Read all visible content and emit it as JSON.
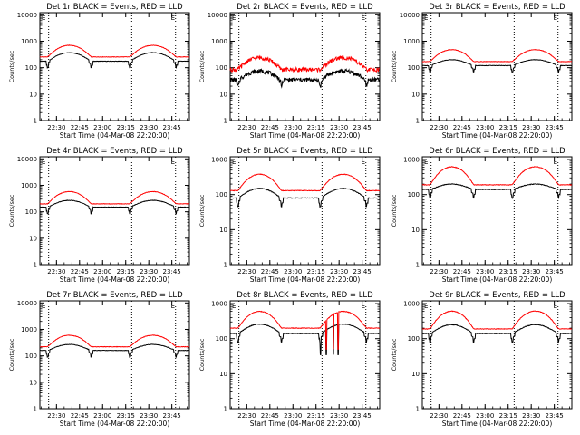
{
  "chart_data": [
    {
      "type": "line",
      "title": "Det 1r BLACK = Events, RED = LLD",
      "xlabel": "Start Time (04-Mar-08 22:20:00)",
      "ylabel": "Counts/sec",
      "yscale": "log",
      "ylim": [
        1,
        12000
      ],
      "xlim": [
        22.32,
        23.94
      ],
      "x_ticks": [
        "22:30",
        "22:45",
        "23:00",
        "23:15",
        "23:30",
        "23:45"
      ],
      "y_ticks": [
        "1",
        "10",
        "100",
        "1000",
        "10000"
      ],
      "marker_label": "E",
      "series": [
        {
          "color": "#000000",
          "kind": "events",
          "base": 175,
          "peak": 370,
          "noise": 0.02
        },
        {
          "color": "#ff0000",
          "kind": "lld",
          "base": 255,
          "peak": 700,
          "noise": 0.02
        }
      ]
    },
    {
      "type": "line",
      "title": "Det 2r BLACK = Events, RED = LLD",
      "xlabel": "Start Time (04-Mar-08 22:20:00)",
      "ylabel": "Counts/sec",
      "yscale": "log",
      "ylim": [
        1,
        12000
      ],
      "xlim": [
        22.32,
        23.94
      ],
      "x_ticks": [
        "22:30",
        "22:45",
        "23:00",
        "23:15",
        "23:30",
        "23:45"
      ],
      "y_ticks": [
        "1",
        "10",
        "100",
        "1000",
        "10000"
      ],
      "marker_label": "E",
      "series": [
        {
          "color": "#000000",
          "kind": "events",
          "base": 35,
          "peak": 75,
          "noise": 0.18
        },
        {
          "color": "#ff0000",
          "kind": "lld",
          "base": 85,
          "peak": 240,
          "noise": 0.18
        }
      ]
    },
    {
      "type": "line",
      "title": "Det 3r BLACK = Events, RED = LLD",
      "xlabel": "Start Time (04-Mar-08 22:20:00)",
      "ylabel": "Counts/sec",
      "yscale": "log",
      "ylim": [
        1,
        12000
      ],
      "xlim": [
        22.32,
        23.94
      ],
      "x_ticks": [
        "22:30",
        "22:45",
        "23:00",
        "23:15",
        "23:30",
        "23:45"
      ],
      "y_ticks": [
        "1",
        "10",
        "100",
        "1000",
        "10000"
      ],
      "marker_label": "E",
      "series": [
        {
          "color": "#000000",
          "kind": "events",
          "base": 120,
          "peak": 200,
          "noise": 0.02
        },
        {
          "color": "#ff0000",
          "kind": "lld",
          "base": 170,
          "peak": 480,
          "noise": 0.02
        }
      ]
    },
    {
      "type": "line",
      "title": "Det 4r BLACK = Events, RED = LLD",
      "xlabel": "Start Time (04-Mar-08 22:20:00)",
      "ylabel": "Counts/sec",
      "yscale": "log",
      "ylim": [
        1,
        12000
      ],
      "xlim": [
        22.32,
        23.94
      ],
      "x_ticks": [
        "22:30",
        "22:45",
        "23:00",
        "23:15",
        "23:30",
        "23:45"
      ],
      "y_ticks": [
        "1",
        "10",
        "100",
        "1000",
        "10000"
      ],
      "marker_label": "E",
      "series": [
        {
          "color": "#000000",
          "kind": "events",
          "base": 150,
          "peak": 270,
          "noise": 0.02
        },
        {
          "color": "#ff0000",
          "kind": "lld",
          "base": 200,
          "peak": 580,
          "noise": 0.02
        }
      ]
    },
    {
      "type": "line",
      "title": "Det 5r BLACK = Events, RED = LLD",
      "xlabel": "Start Time (04-Mar-08 22:20:00)",
      "ylabel": "Counts/sec",
      "yscale": "log",
      "ylim": [
        1,
        1200
      ],
      "xlim": [
        22.32,
        23.94
      ],
      "x_ticks": [
        "22:30",
        "22:45",
        "23:00",
        "23:15",
        "23:30",
        "23:45"
      ],
      "y_ticks": [
        "1",
        "10",
        "100",
        "1000"
      ],
      "marker_label": "E",
      "series": [
        {
          "color": "#000000",
          "kind": "events",
          "base": 80,
          "peak": 150,
          "noise": 0.02
        },
        {
          "color": "#ff0000",
          "kind": "lld",
          "base": 130,
          "peak": 380,
          "noise": 0.02
        }
      ]
    },
    {
      "type": "line",
      "title": "Det 6r BLACK = Events, RED = LLD",
      "xlabel": "Start Time (04-Mar-08 22:20:00)",
      "ylabel": "Counts/sec",
      "yscale": "log",
      "ylim": [
        1,
        1200
      ],
      "xlim": [
        22.32,
        23.94
      ],
      "x_ticks": [
        "22:30",
        "22:45",
        "23:00",
        "23:15",
        "23:30",
        "23:45"
      ],
      "y_ticks": [
        "1",
        "10",
        "100",
        "1000"
      ],
      "marker_label": "E",
      "series": [
        {
          "color": "#000000",
          "kind": "events",
          "base": 140,
          "peak": 200,
          "noise": 0.02
        },
        {
          "color": "#ff0000",
          "kind": "lld",
          "base": 190,
          "peak": 620,
          "noise": 0.02
        }
      ]
    },
    {
      "type": "line",
      "title": "Det 7r BLACK = Events, RED = LLD",
      "xlabel": "Start Time (04-Mar-08 22:20:00)",
      "ylabel": "Counts/sec",
      "yscale": "log",
      "ylim": [
        1,
        12000
      ],
      "xlim": [
        22.32,
        23.94
      ],
      "x_ticks": [
        "22:30",
        "22:45",
        "23:00",
        "23:15",
        "23:30",
        "23:45"
      ],
      "y_ticks": [
        "1",
        "10",
        "100",
        "1000",
        "10000"
      ],
      "marker_label": "E",
      "series": [
        {
          "color": "#000000",
          "kind": "events",
          "base": 160,
          "peak": 270,
          "noise": 0.02
        },
        {
          "color": "#ff0000",
          "kind": "lld",
          "base": 220,
          "peak": 600,
          "noise": 0.02
        }
      ]
    },
    {
      "type": "line",
      "title": "Det 8r BLACK = Events, RED = LLD",
      "xlabel": "Start Time (04-Mar-08 22:20:00)",
      "ylabel": "Counts/sec",
      "yscale": "log",
      "ylim": [
        1,
        1200
      ],
      "xlim": [
        22.32,
        23.94
      ],
      "x_ticks": [
        "22:30",
        "22:45",
        "23:00",
        "23:15",
        "23:30",
        "23:45"
      ],
      "y_ticks": [
        "1",
        "10",
        "100",
        "1000"
      ],
      "marker_label": "E",
      "series": [
        {
          "color": "#000000",
          "kind": "events",
          "base": 140,
          "peak": 260,
          "noise": 0.02,
          "spikes": [
            23.3,
            23.36,
            23.44,
            23.49
          ]
        },
        {
          "color": "#ff0000",
          "kind": "lld",
          "base": 200,
          "peak": 600,
          "noise": 0.02,
          "spikes": [
            23.36,
            23.44,
            23.49
          ]
        }
      ]
    },
    {
      "type": "line",
      "title": "Det 9r BLACK = Events, RED = LLD",
      "xlabel": "Start Time (04-Mar-08 22:20:00)",
      "ylabel": "Counts/sec",
      "yscale": "log",
      "ylim": [
        1,
        1200
      ],
      "xlim": [
        22.32,
        23.94
      ],
      "x_ticks": [
        "22:30",
        "22:45",
        "23:00",
        "23:15",
        "23:30",
        "23:45"
      ],
      "y_ticks": [
        "1",
        "10",
        "100",
        "1000"
      ],
      "marker_label": "E",
      "series": [
        {
          "color": "#000000",
          "kind": "events",
          "base": 140,
          "peak": 250,
          "noise": 0.02
        },
        {
          "color": "#ff0000",
          "kind": "lld",
          "base": 190,
          "peak": 610,
          "noise": 0.02
        }
      ]
    }
  ]
}
